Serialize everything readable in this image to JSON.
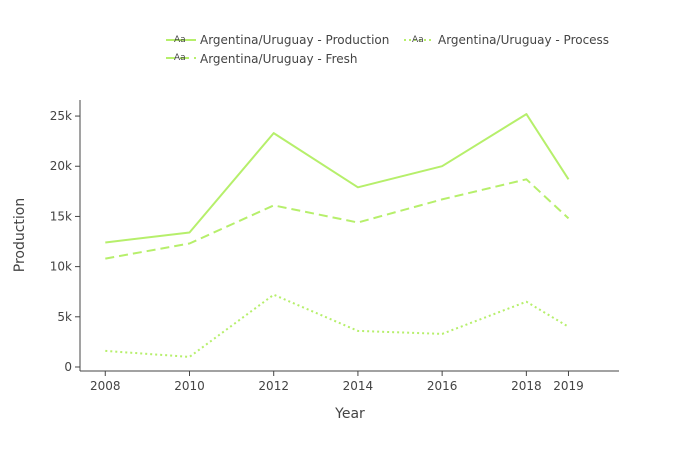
{
  "chart_data": {
    "type": "line",
    "title": "",
    "xlabel": "Year",
    "ylabel": "Production",
    "x": [
      2008,
      2010,
      2012,
      2014,
      2016,
      2018,
      2019
    ],
    "x_ticks": [
      "2008",
      "2010",
      "2012",
      "2014",
      "2016",
      "2018",
      "2019"
    ],
    "y_ticks": [
      "0",
      "5k",
      "10k",
      "15k",
      "20k",
      "25k"
    ],
    "y_tick_values": [
      0,
      5000,
      10000,
      15000,
      20000,
      25000
    ],
    "ylim": [
      -400,
      26600
    ],
    "xlim": [
      2007.4,
      2020.2
    ],
    "grid": false,
    "legend_position": "top",
    "legend_symbol_text": "Aa",
    "series": [
      {
        "name": "Argentina/Uruguay - Production",
        "color": "#b6ef6b",
        "dash": "solid",
        "values": [
          12400,
          13400,
          23300,
          17900,
          20000,
          25200,
          18700
        ]
      },
      {
        "name": "Argentina/Uruguay - Process",
        "color": "#b6ef6b",
        "dash": "dot",
        "values": [
          1600,
          1000,
          7200,
          3600,
          3300,
          6500,
          4000
        ]
      },
      {
        "name": "Argentina/Uruguay - Fresh",
        "color": "#b6ef6b",
        "dash": "dash",
        "values": [
          10800,
          12300,
          16100,
          14400,
          16700,
          18700,
          14800
        ]
      }
    ]
  }
}
